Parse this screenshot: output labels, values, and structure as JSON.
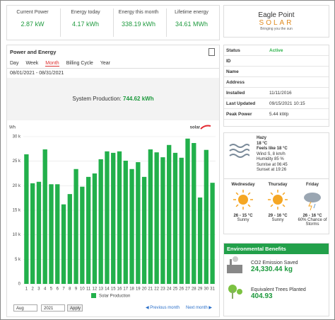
{
  "summary": [
    {
      "label": "Current Power",
      "value": "2.87 kW"
    },
    {
      "label": "Energy today",
      "value": "4.17 kWh"
    },
    {
      "label": "Energy this month",
      "value": "338.19 kWh"
    },
    {
      "label": "Lifetime energy",
      "value": "34.61 MWh"
    }
  ],
  "panel": {
    "title": "Power and Energy",
    "tabs": [
      "Day",
      "Week",
      "Month",
      "Billing Cycle",
      "Year"
    ],
    "active_tab": 2,
    "date_range": "08/01/2021 - 08/31/2021",
    "production_label": "System Production:",
    "production_value": "744.62 kWh"
  },
  "chart_data": {
    "type": "bar",
    "y_label": "Wh",
    "brand": "solar",
    "categories": [
      "1",
      "2",
      "3",
      "4",
      "5",
      "6",
      "7",
      "8",
      "9",
      "10",
      "11",
      "12",
      "13",
      "14",
      "15",
      "16",
      "17",
      "18",
      "19",
      "20",
      "21",
      "22",
      "23",
      "24",
      "25",
      "26",
      "27",
      "28",
      "29",
      "30",
      "31"
    ],
    "series": [
      {
        "name": "Solar Production",
        "color": "#22b04b",
        "values": [
          26400,
          20500,
          20800,
          27400,
          20300,
          20300,
          16200,
          18300,
          23400,
          19800,
          21800,
          22500,
          25400,
          27000,
          26700,
          27000,
          25100,
          23400,
          24800,
          21800,
          27400,
          26800,
          25800,
          28300,
          26700,
          25700,
          29600,
          28700,
          17600,
          27300,
          20600
        ]
      }
    ],
    "ylim": [
      0,
      30000
    ],
    "yticks": [
      0,
      {
        "value": 5000,
        "label": "5 k"
      },
      {
        "value": 10000,
        "label": "10 k"
      },
      {
        "value": 15000,
        "label": "15 k"
      },
      {
        "value": 20000,
        "label": "20 k"
      },
      {
        "value": 25000,
        "label": "25 k"
      },
      {
        "value": 30000,
        "label": "30 k"
      }
    ],
    "grid": true
  },
  "controls": {
    "month": "Aug",
    "year": "2021",
    "apply": "Apply",
    "previous": "Previous month",
    "next": "Next month"
  },
  "logo": {
    "line1": "Eagle Point",
    "line2": "SOLAR",
    "tagline": "Bringing you the sun"
  },
  "info": [
    {
      "label": "Status",
      "value": "Active"
    },
    {
      "label": "ID"
    },
    {
      "label": "Name"
    },
    {
      "label": "Address"
    },
    {
      "label": "Installed",
      "value": "11/11/2016"
    },
    {
      "label": "Last Updated",
      "value": "09/15/2021 10:15"
    },
    {
      "label": "Peak Power",
      "value": "5.44 kWp"
    }
  ],
  "weather": {
    "current": [
      "Hazy",
      "18 °C",
      "Feels like 18 °C",
      "Wind S, 8 km/h",
      "Humidity 85 %",
      "Sunrise at 06:45",
      "Sunset at 19:26"
    ],
    "forecast": [
      {
        "day": "Wednesday",
        "temp": "26 - 15 °C",
        "desc": "Sunny"
      },
      {
        "day": "Thursday",
        "temp": "29 - 16 °C",
        "desc": "Sunny"
      },
      {
        "day": "Friday",
        "temp": "26 - 16 °C",
        "desc": "60% Chance of Storms"
      }
    ]
  },
  "benefits": {
    "title": "Environmental Benefits",
    "items": [
      {
        "label": "CO2 Emission Saved",
        "value": "24,330.44 kg"
      },
      {
        "label": "Equivalent Trees Planted",
        "value": "404.93"
      }
    ]
  }
}
